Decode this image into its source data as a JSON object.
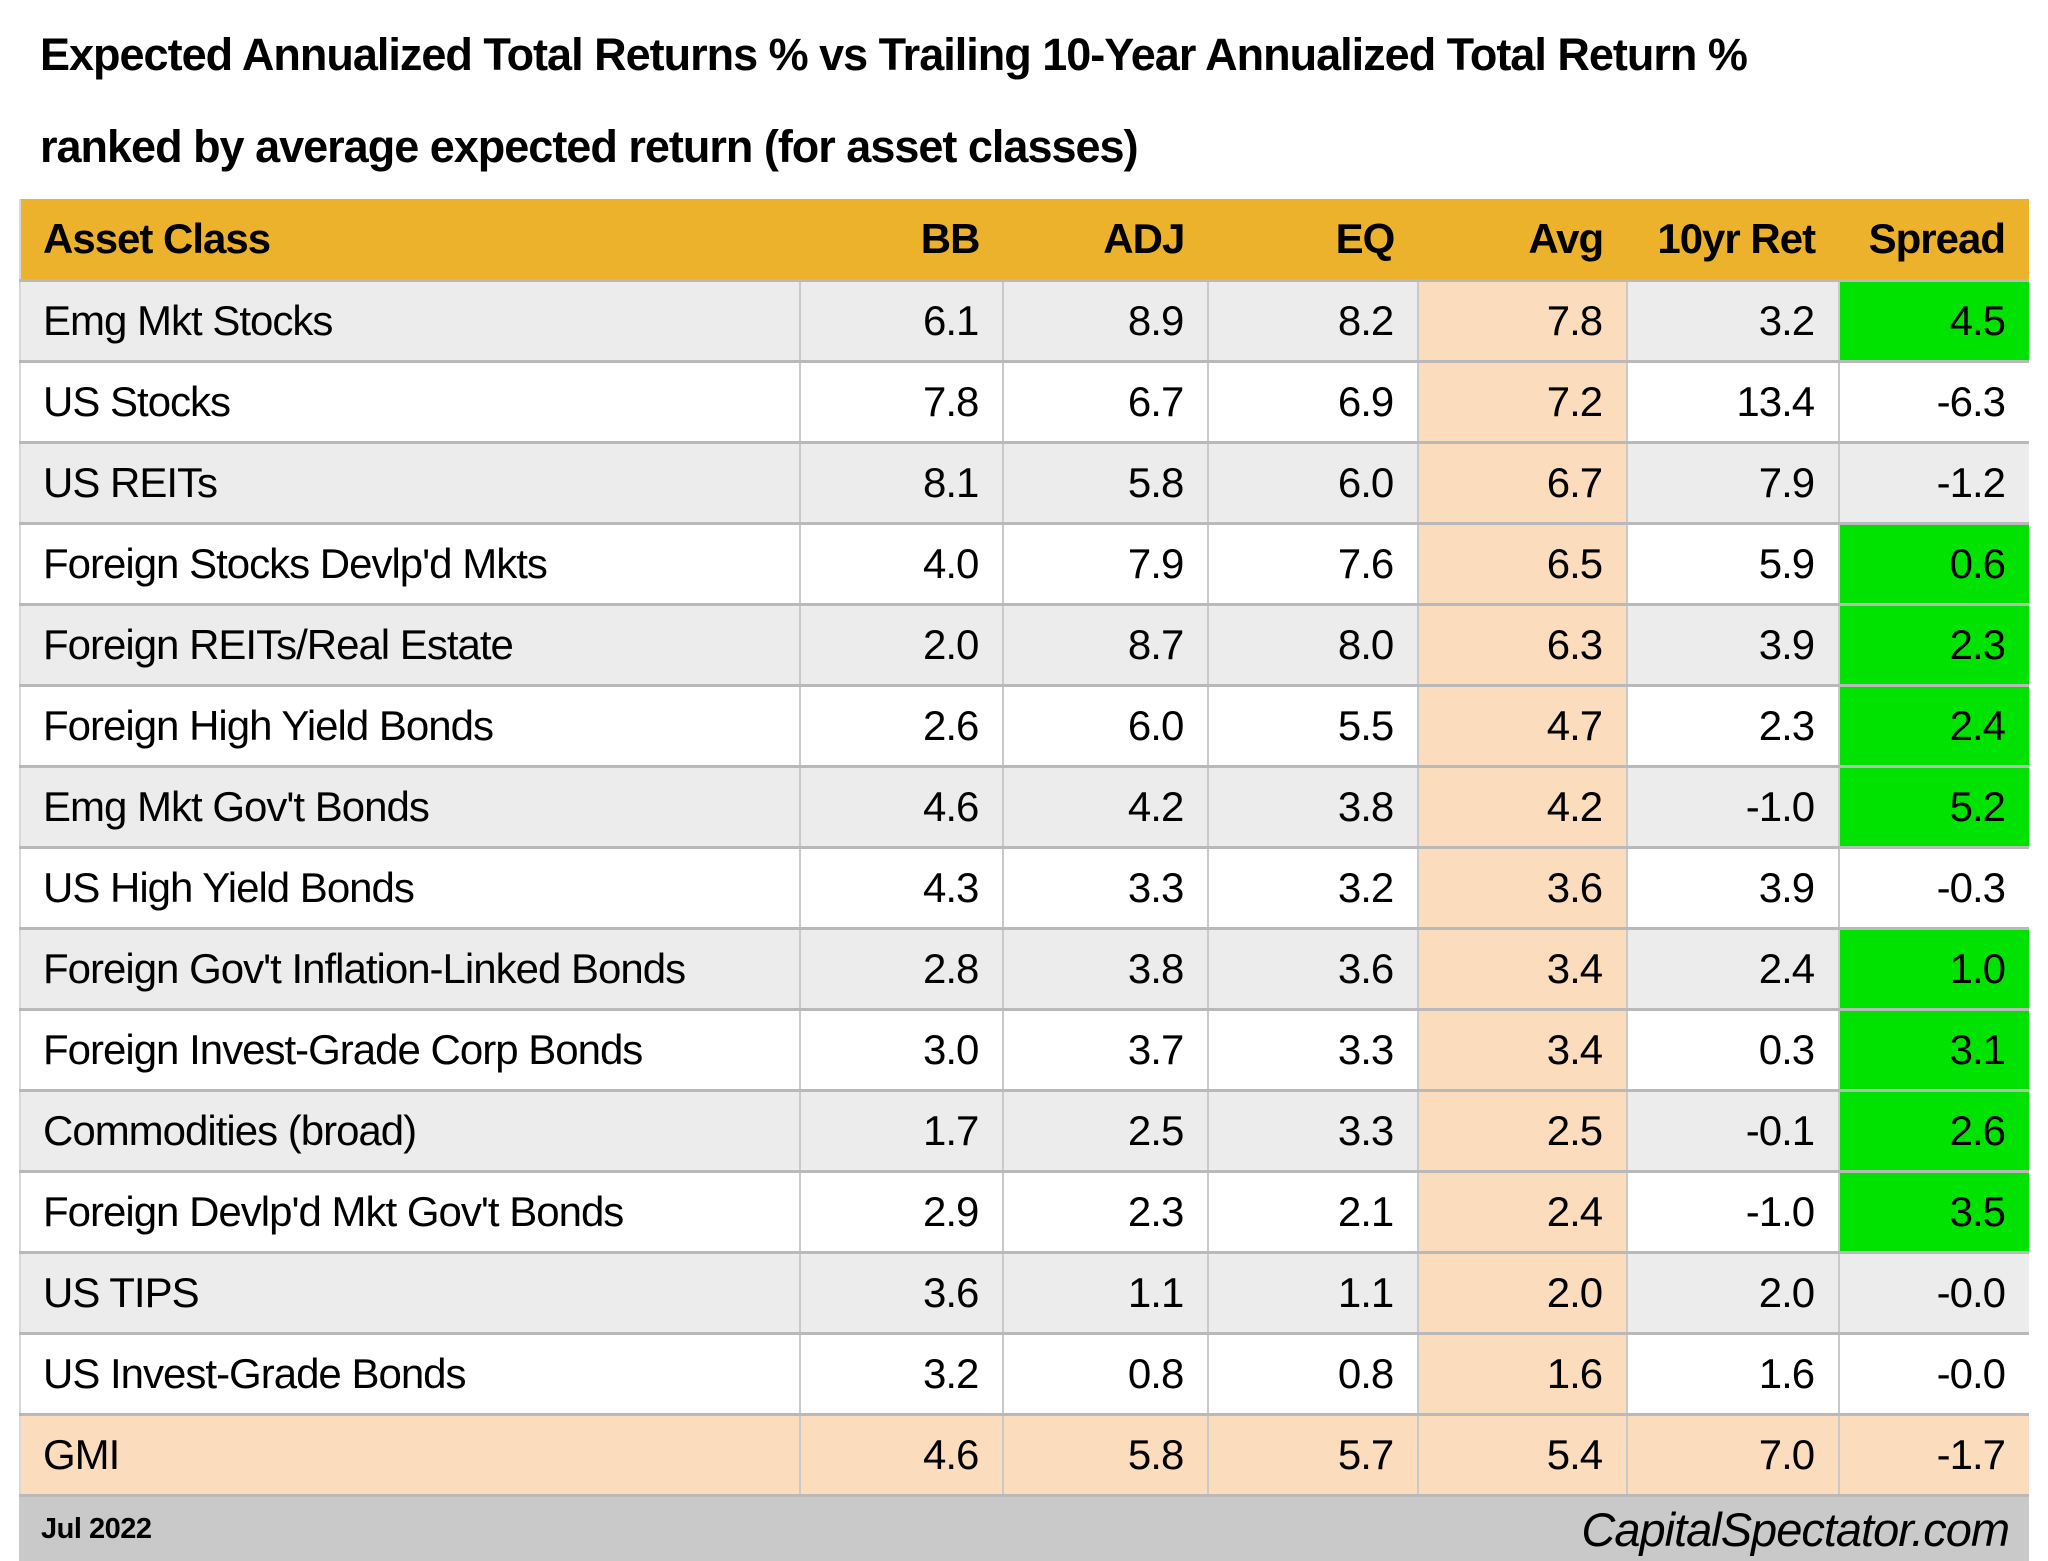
{
  "title": {
    "line1": "Expected Annualized Total Returns % vs Trailing 10-Year Annualized Total Return %",
    "line2": "ranked by average expected return (for asset classes)"
  },
  "chart_data": {
    "type": "table",
    "columns": [
      "Asset Class",
      "BB",
      "ADJ",
      "EQ",
      "Avg",
      "10yr Ret",
      "Spread"
    ],
    "rows": [
      {
        "asset": "Emg Mkt Stocks",
        "bb": "6.1",
        "adj": "8.9",
        "eq": "8.2",
        "avg": "7.8",
        "ret10": "3.2",
        "spread": "4.5",
        "spread_green": true,
        "highlight": false
      },
      {
        "asset": "US Stocks",
        "bb": "7.8",
        "adj": "6.7",
        "eq": "6.9",
        "avg": "7.2",
        "ret10": "13.4",
        "spread": "-6.3",
        "spread_green": false,
        "highlight": false
      },
      {
        "asset": "US REITs",
        "bb": "8.1",
        "adj": "5.8",
        "eq": "6.0",
        "avg": "6.7",
        "ret10": "7.9",
        "spread": "-1.2",
        "spread_green": false,
        "highlight": false
      },
      {
        "asset": "Foreign Stocks Devlp'd Mkts",
        "bb": "4.0",
        "adj": "7.9",
        "eq": "7.6",
        "avg": "6.5",
        "ret10": "5.9",
        "spread": "0.6",
        "spread_green": true,
        "highlight": false
      },
      {
        "asset": "Foreign REITs/Real Estate",
        "bb": "2.0",
        "adj": "8.7",
        "eq": "8.0",
        "avg": "6.3",
        "ret10": "3.9",
        "spread": "2.3",
        "spread_green": true,
        "highlight": false
      },
      {
        "asset": "Foreign High Yield Bonds",
        "bb": "2.6",
        "adj": "6.0",
        "eq": "5.5",
        "avg": "4.7",
        "ret10": "2.3",
        "spread": "2.4",
        "spread_green": true,
        "highlight": false
      },
      {
        "asset": "Emg Mkt Gov't Bonds",
        "bb": "4.6",
        "adj": "4.2",
        "eq": "3.8",
        "avg": "4.2",
        "ret10": "-1.0",
        "spread": "5.2",
        "spread_green": true,
        "highlight": false
      },
      {
        "asset": "US High Yield Bonds",
        "bb": "4.3",
        "adj": "3.3",
        "eq": "3.2",
        "avg": "3.6",
        "ret10": "3.9",
        "spread": "-0.3",
        "spread_green": false,
        "highlight": false
      },
      {
        "asset": "Foreign Gov't Inflation-Linked Bonds",
        "bb": "2.8",
        "adj": "3.8",
        "eq": "3.6",
        "avg": "3.4",
        "ret10": "2.4",
        "spread": "1.0",
        "spread_green": true,
        "highlight": false
      },
      {
        "asset": "Foreign Invest-Grade Corp Bonds",
        "bb": "3.0",
        "adj": "3.7",
        "eq": "3.3",
        "avg": "3.4",
        "ret10": "0.3",
        "spread": "3.1",
        "spread_green": true,
        "highlight": false
      },
      {
        "asset": "Commodities (broad)",
        "bb": "1.7",
        "adj": "2.5",
        "eq": "3.3",
        "avg": "2.5",
        "ret10": "-0.1",
        "spread": "2.6",
        "spread_green": true,
        "highlight": false
      },
      {
        "asset": "Foreign Devlp'd Mkt Gov't Bonds",
        "bb": "2.9",
        "adj": "2.3",
        "eq": "2.1",
        "avg": "2.4",
        "ret10": "-1.0",
        "spread": "3.5",
        "spread_green": true,
        "highlight": false
      },
      {
        "asset": "US TIPS",
        "bb": "3.6",
        "adj": "1.1",
        "eq": "1.1",
        "avg": "2.0",
        "ret10": "2.0",
        "spread": "-0.0",
        "spread_green": false,
        "highlight": false
      },
      {
        "asset": "US Invest-Grade Bonds",
        "bb": "3.2",
        "adj": "0.8",
        "eq": "0.8",
        "avg": "1.6",
        "ret10": "1.6",
        "spread": "-0.0",
        "spread_green": false,
        "highlight": false
      },
      {
        "asset": "GMI",
        "bb": "4.6",
        "adj": "5.8",
        "eq": "5.7",
        "avg": "5.4",
        "ret10": "7.0",
        "spread": "-1.7",
        "spread_green": false,
        "highlight": true
      }
    ]
  },
  "footer": {
    "date": "Jul 2022",
    "site": "CapitalSpectator.com"
  },
  "colors": {
    "header_bg": "#ECB22B",
    "avg_column_bg": "#FBDCBC",
    "positive_spread_bg": "#00E300",
    "row_stripe_bg": "#ECECEC",
    "highlight_row_bg": "#FBDCBC",
    "footer_bg": "#C9C9C9"
  }
}
